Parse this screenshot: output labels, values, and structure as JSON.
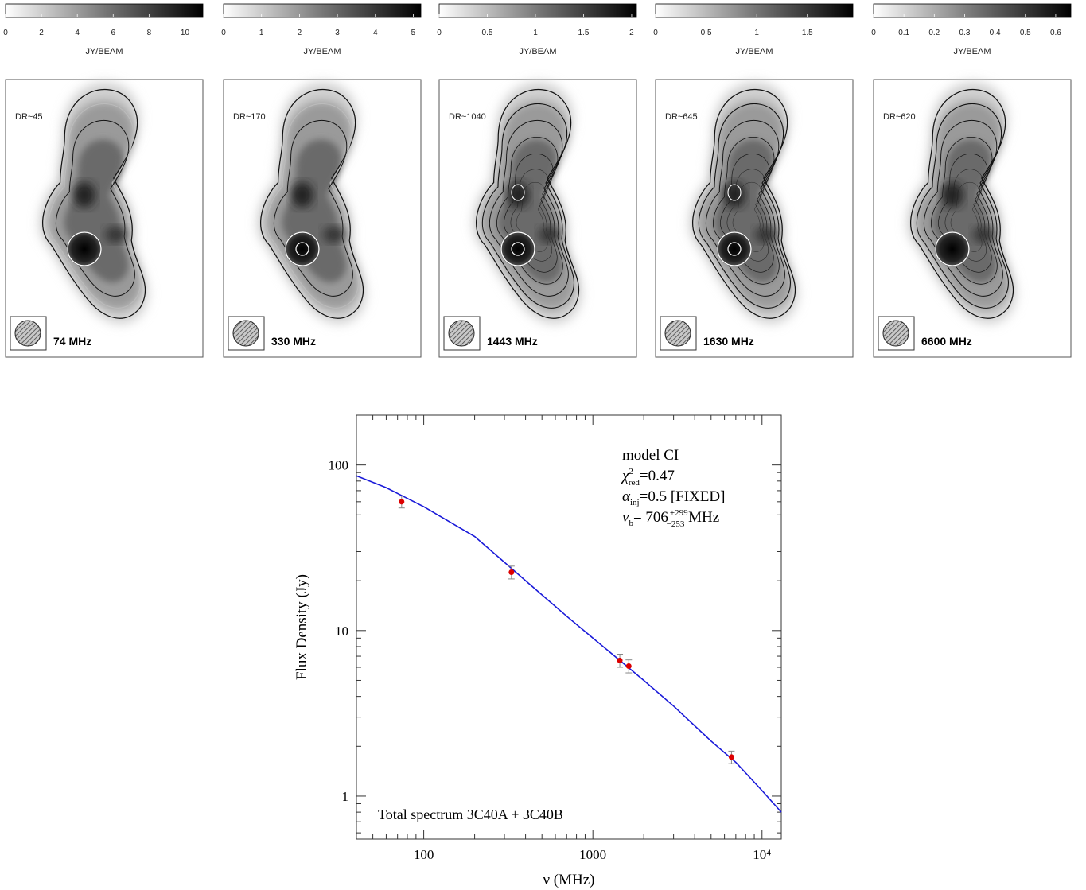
{
  "panels": [
    {
      "dr": "DR~45",
      "freq": "74 MHz",
      "cbar_ticks": [
        "0",
        "2",
        "4",
        "6",
        "8",
        "10"
      ],
      "cbar_max": 11,
      "cbar_unit": "JY/BEAM"
    },
    {
      "dr": "DR~170",
      "freq": "330 MHz",
      "cbar_ticks": [
        "0",
        "1",
        "2",
        "3",
        "4",
        "5"
      ],
      "cbar_max": 5.2,
      "cbar_unit": "JY/BEAM"
    },
    {
      "dr": "DR~1040",
      "freq": "1443 MHz",
      "cbar_ticks": [
        "0",
        "0.5",
        "1",
        "1.5",
        "2"
      ],
      "cbar_max": 2.05,
      "cbar_unit": "JY/BEAM"
    },
    {
      "dr": "DR~645",
      "freq": "1630 MHz",
      "cbar_ticks": [
        "0",
        "0.5",
        "1",
        "1.5"
      ],
      "cbar_max": 1.95,
      "cbar_unit": "JY/BEAM"
    },
    {
      "dr": "DR~620",
      "freq": "6600 MHz",
      "cbar_ticks": [
        "0",
        "0.1",
        "0.2",
        "0.3",
        "0.4",
        "0.5",
        "0.6"
      ],
      "cbar_max": 0.65,
      "cbar_unit": "JY/BEAM"
    }
  ],
  "chart_data": {
    "type": "scatter",
    "xlabel": "ν (MHz)",
    "ylabel": "Flux Density (Jy)",
    "xscale": "log",
    "yscale": "log",
    "xlim": [
      40,
      13000
    ],
    "ylim": [
      0.55,
      200
    ],
    "xticks": [
      "100",
      "1000",
      "10⁴"
    ],
    "yticks": [
      "1",
      "10",
      "100"
    ],
    "annotation_title": "model CI",
    "annotations": [
      {
        "sym": "χ",
        "sup": "2",
        "sub": "red",
        "text": "=0.47"
      },
      {
        "sym": "α",
        "sup": "",
        "sub": "inj",
        "text": "=0.5  [FIXED]"
      },
      {
        "sym": "ν",
        "sup": "",
        "sub": "b",
        "text": "=  706",
        "err_up": "+299",
        "err_down": "−253",
        "unit": " MHz"
      }
    ],
    "footer": "Total spectrum 3C40A + 3C40B",
    "points": [
      {
        "x": 74,
        "y": 60,
        "yerr": 5
      },
      {
        "x": 330,
        "y": 22.5,
        "yerr": 2
      },
      {
        "x": 1443,
        "y": 6.6,
        "yerr": 0.6
      },
      {
        "x": 1630,
        "y": 6.1,
        "yerr": 0.55
      },
      {
        "x": 6600,
        "y": 1.72,
        "yerr": 0.15
      }
    ],
    "model_curve": [
      {
        "x": 40,
        "y": 86
      },
      {
        "x": 60,
        "y": 73
      },
      {
        "x": 100,
        "y": 56
      },
      {
        "x": 200,
        "y": 37
      },
      {
        "x": 400,
        "y": 20
      },
      {
        "x": 700,
        "y": 12.2
      },
      {
        "x": 1000,
        "y": 9
      },
      {
        "x": 1500,
        "y": 6.4
      },
      {
        "x": 2000,
        "y": 5.0
      },
      {
        "x": 3000,
        "y": 3.5
      },
      {
        "x": 5000,
        "y": 2.15
      },
      {
        "x": 7000,
        "y": 1.6
      },
      {
        "x": 10000,
        "y": 1.08
      },
      {
        "x": 13000,
        "y": 0.8
      }
    ],
    "point_color": "#dd0000",
    "curve_color": "#1a1ad9",
    "grid": false,
    "legend": "none"
  }
}
